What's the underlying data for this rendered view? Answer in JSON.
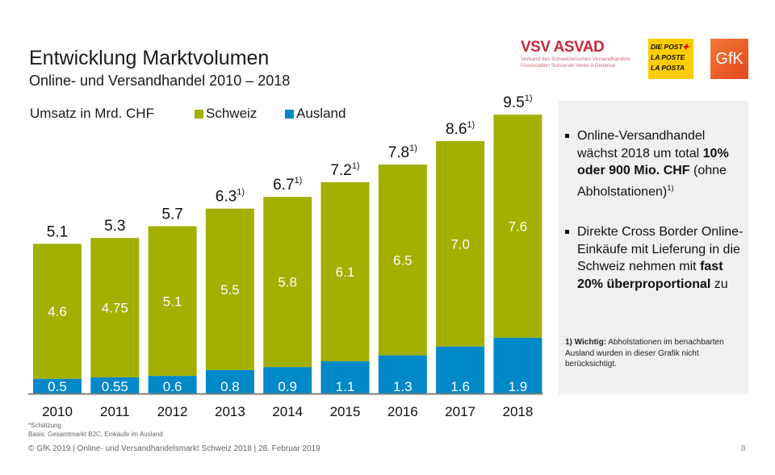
{
  "header": {
    "title": "Entwicklung Marktvolumen",
    "subtitle": "Online- und Versandhandel 2010 – 2018"
  },
  "logos": {
    "vsv_name": "VSV ASVAD",
    "vsv_line1": "Verband des Schweizerischen Versandhandels",
    "vsv_line2": "l'Association Suisse de Vente à Distance",
    "post_line1": "DIE POST",
    "post_line2": "LA POSTE",
    "post_line3": "LA POSTA",
    "gfk": "GfK"
  },
  "chart_data": {
    "type": "bar",
    "stacked": true,
    "title": "Entwicklung Marktvolumen",
    "ylabel": "Umsatz in Mrd. CHF",
    "xlabel": "",
    "categories": [
      "2010",
      "2011",
      "2012",
      "2013",
      "2014",
      "2015",
      "2016",
      "2017",
      "2018"
    ],
    "series": [
      {
        "name": "Ausland",
        "color": "#0088c8",
        "values": [
          0.5,
          0.55,
          0.6,
          0.8,
          0.9,
          1.1,
          1.3,
          1.6,
          1.9
        ],
        "labels": [
          "0.5",
          "0.55",
          "0.6",
          "0.8",
          "0.9",
          "1.1",
          "1.3",
          "1.6",
          "1.9"
        ]
      },
      {
        "name": "Schweiz",
        "color": "#a2b000",
        "values": [
          4.6,
          4.75,
          5.1,
          5.5,
          5.8,
          6.1,
          6.5,
          7.0,
          7.6
        ],
        "labels": [
          "4.6",
          "4.75",
          "5.1",
          "5.5",
          "5.8",
          "6.1",
          "6.5",
          "7.0",
          "7.6"
        ]
      }
    ],
    "totals": [
      5.1,
      5.3,
      5.7,
      6.3,
      6.7,
      7.2,
      7.8,
      8.6,
      9.5
    ],
    "total_labels": [
      "5.1",
      "5.3",
      "5.7",
      "6.3",
      "6.7",
      "7.2",
      "7.8",
      "8.6",
      "9.5"
    ],
    "total_footnotes": [
      "",
      "",
      "",
      "1)",
      "1)",
      "1)",
      "1)",
      "1)",
      "1)"
    ],
    "ylim": [
      0,
      10
    ],
    "grid": false,
    "legend": [
      "Schweiz",
      "Ausland"
    ],
    "legend_position": "top"
  },
  "panel": {
    "bullet1_a": "Online-Versandhandel wächst 2018 um total ",
    "bullet1_bold": "10% oder 900 Mio. CHF",
    "bullet1_b": " (ohne Abholstationen)",
    "bullet1_sup": "1)",
    "bullet2_a": "Direkte Cross Border Online-Einkäufe mit Lieferung in die Schweiz nehmen mit ",
    "bullet2_bold": "fast 20% überproportional",
    "bullet2_b": " zu",
    "note_bold": "1) Wichtig:",
    "note_text": " Abholstationen im benachbarten Ausland wurden in dieser Grafik nicht berücksichtigt."
  },
  "footer": {
    "note1": "*Schätzung",
    "note2": "Basis: Gesamtmarkt B2C, Einkäufe im Ausland",
    "copyright": "© GfK 2019 | Online- und Versandhandelsmarkt Schweiz 2018 | 28. Februar 2019",
    "page": "8"
  }
}
